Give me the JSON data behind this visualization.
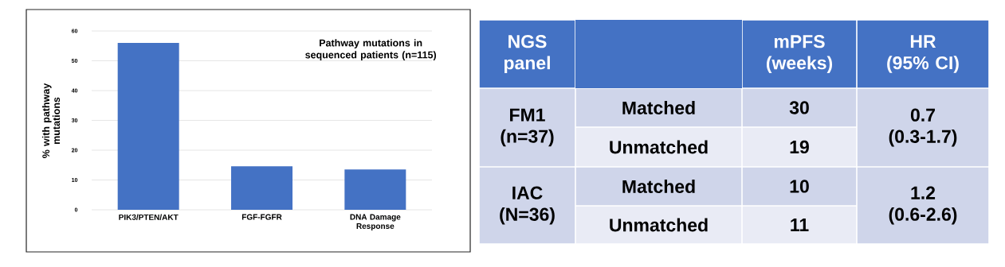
{
  "chart_data": [
    {
      "type": "bar",
      "title": "Pathway mutations in sequenced patients (n=115)",
      "ylabel": "% with pathway mutations",
      "categories": [
        "PIK3/PTEN/AKT",
        "FGF-FGFR",
        "DNA Damage Response"
      ],
      "values": [
        56,
        14.6,
        13.5
      ],
      "color": "#4472c4",
      "ylim": [
        0,
        60
      ],
      "yticks": [
        0,
        10,
        20,
        30,
        40,
        50,
        60
      ],
      "grid": "y"
    },
    {
      "type": "other",
      "annotations": [
        "NGS panel",
        "mPFS (weeks)",
        "HR (95% CI)",
        "FM1 (n=37)",
        "Matched",
        "30",
        "0.7 (0.3-1.7)",
        "Unmatched",
        "19",
        "IAC (N=36)",
        "Matched",
        "10",
        "1.2 (0.6-2.6)",
        "Unmatched",
        "11"
      ]
    }
  ]
}
